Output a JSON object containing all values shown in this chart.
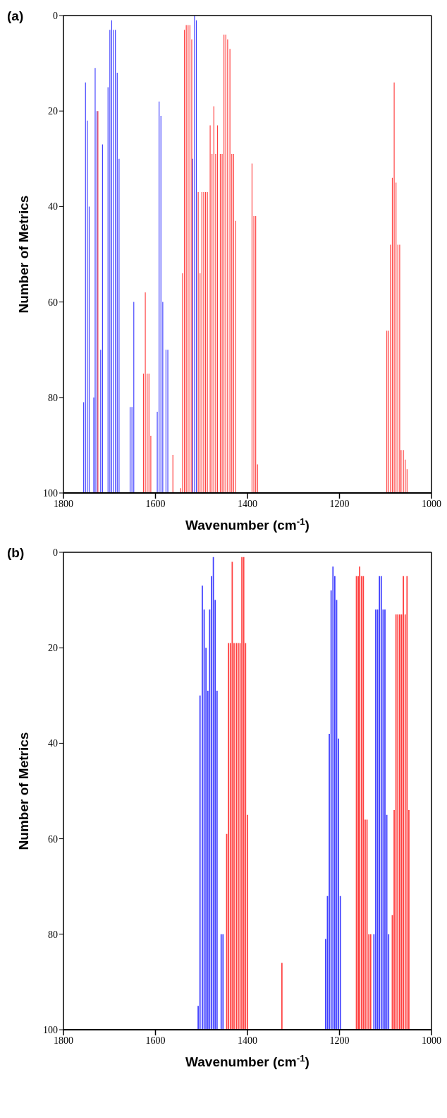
{
  "chart_data": [
    {
      "type": "bar",
      "title": "(a)",
      "xlabel": "Wavenumber (cm$^{-1}$)",
      "ylabel": "Number of Metrics",
      "xlim": [
        1800,
        1000
      ],
      "xticks": [
        1800,
        1600,
        1400,
        1200,
        1000
      ],
      "ylim": [
        100,
        0
      ],
      "yticks": [
        0,
        20,
        40,
        60,
        80,
        100
      ],
      "series": [
        {
          "color": "#0000ff",
          "x": [
            1756,
            1752,
            1748,
            1744,
            1734,
            1731,
            1727,
            1719,
            1715,
            1703,
            1699,
            1695,
            1691,
            1687,
            1683,
            1679,
            1655,
            1651,
            1647,
            1596,
            1592,
            1588,
            1584,
            1577,
            1573,
            1519,
            1515,
            1511
          ],
          "values": [
            -19,
            -86,
            -78,
            -60,
            -20,
            -89,
            -80,
            -30,
            -73,
            -85,
            -97,
            -99,
            -97,
            -97,
            -88,
            -70,
            -18,
            -18,
            -40,
            -17,
            -82,
            -79,
            -40,
            -30,
            -30,
            -70,
            -100,
            -99
          ],
          "base": [
            100,
            100,
            100,
            100,
            100,
            100,
            100,
            100,
            100,
            100,
            100,
            100,
            100,
            100,
            100,
            100,
            100,
            100,
            100,
            100,
            100,
            100,
            100,
            100,
            100,
            100,
            100,
            100
          ]
        },
        {
          "color": "#ff0000",
          "x": [
            1725,
            1626,
            1622,
            1618,
            1614,
            1610,
            1562,
            1545,
            1541,
            1537,
            1533,
            1529,
            1525,
            1521,
            1507,
            1503,
            1499,
            1495,
            1491,
            1487,
            1481,
            1477,
            1473,
            1469,
            1465,
            1459,
            1455,
            1451,
            1447,
            1443,
            1438,
            1434,
            1430,
            1426,
            1390,
            1386,
            1382,
            1378,
            1097,
            1093,
            1089,
            1085,
            1081,
            1077,
            1073,
            1069,
            1066,
            1061,
            1057,
            1053
          ],
          "values": [
            -80,
            -25,
            -42,
            -25,
            -25,
            -12,
            -8,
            -1,
            -46,
            -97,
            -98,
            -98,
            -98,
            -95,
            -63,
            -46,
            -63,
            -63,
            -63,
            -63,
            -77,
            -71,
            -81,
            -71,
            -77,
            -71,
            -71,
            -96,
            -96,
            -95,
            -93,
            -71,
            -71,
            -57,
            -69,
            -58,
            -58,
            -6,
            -34,
            -34,
            -52,
            -66,
            -86,
            -65,
            -52,
            -52,
            -9,
            -9,
            -7,
            -5
          ],
          "base": [
            100,
            100,
            100,
            100,
            100,
            100,
            100,
            100,
            100,
            100,
            100,
            100,
            100,
            100,
            100,
            100,
            100,
            100,
            100,
            100,
            100,
            100,
            100,
            100,
            100,
            100,
            100,
            100,
            100,
            100,
            100,
            100,
            100,
            100,
            100,
            100,
            100,
            100,
            100,
            100,
            100,
            100,
            100,
            100,
            100,
            100,
            100,
            100,
            100,
            100
          ]
        }
      ]
    },
    {
      "type": "bar",
      "title": "(b)",
      "xlabel": "Wavenumber (cm$^{-1}$)",
      "ylabel": "Number of Metrics",
      "xlim": [
        1800,
        1000
      ],
      "xticks": [
        1800,
        1600,
        1400,
        1200,
        1000
      ],
      "ylim": [
        100,
        0
      ],
      "yticks": [
        0,
        20,
        40,
        60,
        80,
        100
      ],
      "series": [
        {
          "color": "#0000ff",
          "x": [
            1507,
            1503,
            1498,
            1494,
            1490,
            1486,
            1482,
            1478,
            1474,
            1470,
            1466,
            1457,
            1453,
            1230,
            1226,
            1222,
            1218,
            1214,
            1210,
            1206,
            1202,
            1198,
            1125,
            1121,
            1117,
            1113,
            1109,
            1105,
            1101,
            1097,
            1093
          ],
          "values": [
            -5,
            -70,
            -93,
            -88,
            -80,
            -71,
            -88,
            -95,
            -99,
            -90,
            -71,
            -20,
            -20,
            -19,
            -28,
            -62,
            -92,
            -97,
            -95,
            -90,
            -61,
            -28,
            -20,
            -88,
            -88,
            -95,
            -95,
            -88,
            -88,
            -45,
            -20
          ],
          "base": [
            100,
            100,
            100,
            100,
            100,
            100,
            100,
            100,
            100,
            100,
            100,
            100,
            100,
            100,
            100,
            100,
            100,
            100,
            100,
            100,
            100,
            100,
            100,
            100,
            100,
            100,
            100,
            100,
            100,
            100,
            100
          ]
        },
        {
          "color": "#ff0000",
          "x": [
            1445,
            1441,
            1437,
            1433,
            1429,
            1424,
            1420,
            1416,
            1412,
            1408,
            1404,
            1400,
            1325,
            1163,
            1159,
            1156,
            1152,
            1148,
            1144,
            1140,
            1136,
            1132,
            1085,
            1081,
            1077,
            1073,
            1069,
            1065,
            1061,
            1057,
            1053,
            1049
          ],
          "values": [
            -41,
            -81,
            -81,
            -98,
            -81,
            -81,
            -81,
            -81,
            -99,
            -99,
            -81,
            -45,
            -14,
            -95,
            -95,
            -97,
            -95,
            -95,
            -44,
            -44,
            -20,
            -20,
            -24,
            -46,
            -87,
            -87,
            -87,
            -87,
            -95,
            -87,
            -95,
            -46
          ],
          "base": [
            100,
            100,
            100,
            100,
            100,
            100,
            100,
            100,
            100,
            100,
            100,
            100,
            100,
            100,
            100,
            100,
            100,
            100,
            100,
            100,
            100,
            100,
            100,
            100,
            100,
            100,
            100,
            100,
            100,
            100,
            100,
            100
          ]
        }
      ]
    }
  ]
}
